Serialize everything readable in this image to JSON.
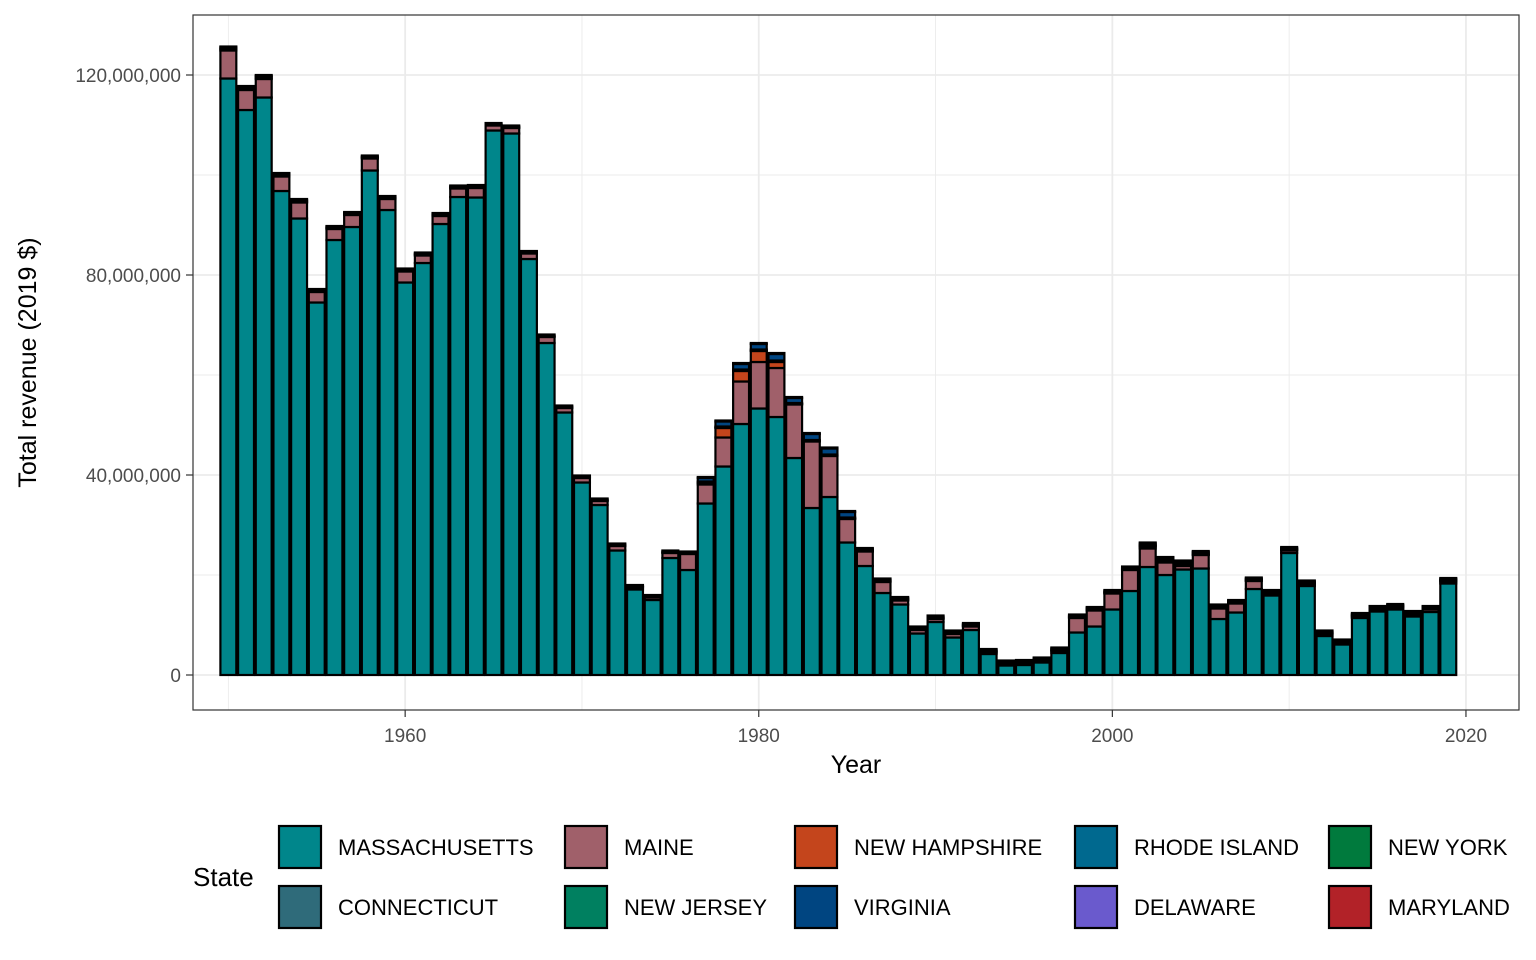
{
  "chart_data": {
    "type": "bar",
    "stacked": true,
    "xlabel": "Year",
    "ylabel": "Total revenue (2019 $)",
    "xlim": [
      1948,
      2023
    ],
    "ylim": [
      -7000000,
      132000000
    ],
    "x_ticks": [
      1960,
      1980,
      2000,
      2020
    ],
    "y_ticks": [
      0,
      40000000,
      80000000,
      120000000
    ],
    "y_tick_labels": [
      "0",
      "40,000,000",
      "80,000,000",
      "120,000,000"
    ],
    "grid": true,
    "legend_position": "bottom",
    "legend_title": "State",
    "bar_outline": "#000000",
    "years": [
      1950,
      1951,
      1952,
      1953,
      1954,
      1955,
      1956,
      1957,
      1958,
      1959,
      1960,
      1961,
      1962,
      1963,
      1964,
      1965,
      1966,
      1967,
      1968,
      1969,
      1970,
      1971,
      1972,
      1973,
      1974,
      1975,
      1976,
      1977,
      1978,
      1979,
      1980,
      1981,
      1982,
      1983,
      1984,
      1985,
      1986,
      1987,
      1988,
      1989,
      1990,
      1991,
      1992,
      1993,
      1994,
      1995,
      1996,
      1997,
      1998,
      1999,
      2000,
      2001,
      2002,
      2003,
      2004,
      2005,
      2006,
      2007,
      2008,
      2009,
      2010,
      2011,
      2012,
      2013,
      2014,
      2015,
      2016,
      2017,
      2018,
      2019
    ],
    "series": [
      {
        "name": "MASSACHUSETTS",
        "color": "#00868B",
        "values": [
          119300000,
          113000000,
          115500000,
          96800000,
          91300000,
          74500000,
          87000000,
          89600000,
          100900000,
          93000000,
          78500000,
          82400000,
          90200000,
          95600000,
          95500000,
          108900000,
          108300000,
          83200000,
          66400000,
          52500000,
          38500000,
          34000000,
          24900000,
          17100000,
          15000000,
          23400000,
          21000000,
          34300000,
          41700000,
          50200000,
          53300000,
          51600000,
          43400000,
          33400000,
          35600000,
          26500000,
          21800000,
          16400000,
          14100000,
          8300000,
          10600000,
          7500000,
          9000000,
          4200000,
          1900000,
          2000000,
          2500000,
          4400000,
          8500000,
          9700000,
          13100000,
          16800000,
          21600000,
          20000000,
          21100000,
          21300000,
          11200000,
          12500000,
          17200000,
          15900000,
          24400000,
          17800000,
          7800000,
          6100000,
          11400000,
          12700000,
          13100000,
          11700000,
          12600000,
          18300000
        ]
      },
      {
        "name": "MAINE",
        "color": "#A0606A",
        "values": [
          5600000,
          4000000,
          3700000,
          2900000,
          3200000,
          2100000,
          2200000,
          2400000,
          2400000,
          2200000,
          2200000,
          1500000,
          1600000,
          1700000,
          1900000,
          1000000,
          1100000,
          1100000,
          1200000,
          900000,
          900000,
          800000,
          900000,
          400000,
          500000,
          1000000,
          3200000,
          3800000,
          5800000,
          8500000,
          9300000,
          9800000,
          10700000,
          13300000,
          8200000,
          4700000,
          2900000,
          2200000,
          800000,
          700000,
          600000,
          700000,
          700000,
          300000,
          300000,
          300000,
          300000,
          400000,
          2900000,
          3200000,
          3200000,
          4200000,
          3700000,
          2500000,
          700000,
          2700000,
          2100000,
          1800000,
          1600000,
          400000,
          500000,
          400000,
          400000,
          300000,
          300000,
          400000,
          400000,
          400000,
          500000,
          400000
        ]
      },
      {
        "name": "NEW HAMPSHIRE",
        "color": "#C4451C",
        "values": [
          0,
          0,
          0,
          0,
          0,
          0,
          0,
          0,
          0,
          0,
          0,
          0,
          0,
          0,
          0,
          0,
          0,
          0,
          0,
          0,
          0,
          0,
          0,
          0,
          0,
          0,
          0,
          300000,
          1900000,
          2100000,
          2200000,
          1200000,
          0,
          0,
          0,
          0,
          0,
          0,
          0,
          0,
          0,
          0,
          0,
          0,
          0,
          0,
          0,
          0,
          0,
          0,
          0,
          0,
          0,
          0,
          0,
          0,
          0,
          0,
          0,
          0,
          0,
          0,
          0,
          0,
          0,
          0,
          0,
          0,
          0,
          0
        ]
      },
      {
        "name": "RHODE ISLAND",
        "color": "#00698F",
        "values": [
          0,
          0,
          0,
          0,
          0,
          0,
          0,
          0,
          0,
          0,
          0,
          0,
          0,
          0,
          0,
          0,
          0,
          0,
          0,
          0,
          0,
          0,
          0,
          0,
          0,
          0,
          0,
          0,
          0,
          0,
          0,
          0,
          0,
          0,
          0,
          0,
          0,
          0,
          0,
          0,
          0,
          0,
          0,
          0,
          0,
          0,
          0,
          0,
          0,
          0,
          0,
          0,
          400000,
          300000,
          300000,
          0,
          0,
          0,
          0,
          0,
          0,
          0,
          0,
          0,
          0,
          0,
          0,
          0,
          0,
          0
        ]
      },
      {
        "name": "NEW YORK",
        "color": "#007A3D",
        "values": [
          0,
          0,
          0,
          0,
          0,
          0,
          0,
          0,
          0,
          0,
          0,
          0,
          0,
          0,
          0,
          0,
          0,
          0,
          0,
          0,
          0,
          0,
          0,
          0,
          0,
          0,
          0,
          0,
          0,
          0,
          0,
          0,
          0,
          0,
          0,
          0,
          0,
          0,
          0,
          0,
          0,
          0,
          0,
          0,
          0,
          0,
          0,
          0,
          0,
          0,
          0,
          0,
          0,
          0,
          0,
          0,
          0,
          0,
          0,
          0,
          0,
          0,
          0,
          0,
          0,
          0,
          0,
          0,
          0,
          0
        ]
      },
      {
        "name": "CONNECTICUT",
        "color": "#2F6B7A",
        "values": [
          300000,
          300000,
          300000,
          200000,
          200000,
          200000,
          200000,
          200000,
          200000,
          200000,
          200000,
          200000,
          200000,
          200000,
          200000,
          100000,
          100000,
          100000,
          100000,
          100000,
          100000,
          100000,
          100000,
          100000,
          100000,
          100000,
          100000,
          100000,
          100000,
          100000,
          100000,
          100000,
          100000,
          100000,
          100000,
          100000,
          100000,
          100000,
          100000,
          100000,
          100000,
          100000,
          100000,
          100000,
          100000,
          100000,
          100000,
          100000,
          100000,
          100000,
          100000,
          100000,
          100000,
          100000,
          100000,
          100000,
          100000,
          100000,
          100000,
          100000,
          100000,
          100000,
          100000,
          100000,
          100000,
          100000,
          100000,
          100000,
          100000,
          100000
        ]
      },
      {
        "name": "NEW JERSEY",
        "color": "#008060",
        "values": [
          300000,
          300000,
          300000,
          300000,
          300000,
          200000,
          200000,
          200000,
          200000,
          200000,
          200000,
          200000,
          200000,
          200000,
          200000,
          200000,
          200000,
          200000,
          200000,
          200000,
          200000,
          200000,
          200000,
          200000,
          200000,
          200000,
          200000,
          200000,
          200000,
          200000,
          200000,
          200000,
          200000,
          200000,
          200000,
          200000,
          200000,
          200000,
          200000,
          200000,
          200000,
          200000,
          200000,
          200000,
          200000,
          200000,
          200000,
          200000,
          200000,
          200000,
          200000,
          200000,
          200000,
          200000,
          200000,
          200000,
          200000,
          200000,
          200000,
          200000,
          200000,
          200000,
          200000,
          200000,
          200000,
          200000,
          200000,
          200000,
          200000,
          200000
        ]
      },
      {
        "name": "VIRGINIA",
        "color": "#004581",
        "values": [
          0,
          0,
          0,
          0,
          0,
          0,
          0,
          0,
          0,
          0,
          0,
          0,
          0,
          0,
          0,
          0,
          0,
          0,
          0,
          0,
          0,
          0,
          0,
          0,
          0,
          0,
          0,
          700000,
          1000000,
          1100000,
          1100000,
          1300000,
          1000000,
          1200000,
          1200000,
          1100000,
          200000,
          200000,
          200000,
          200000,
          200000,
          200000,
          200000,
          200000,
          200000,
          200000,
          200000,
          200000,
          200000,
          200000,
          200000,
          200000,
          300000,
          300000,
          300000,
          300000,
          300000,
          200000,
          200000,
          200000,
          200000,
          200000,
          200000,
          200000,
          200000,
          200000,
          200000,
          200000,
          200000,
          200000
        ]
      },
      {
        "name": "DELAWARE",
        "color": "#6A5ACD",
        "values": [
          0,
          0,
          0,
          0,
          0,
          0,
          0,
          0,
          0,
          0,
          0,
          0,
          0,
          0,
          0,
          0,
          0,
          0,
          0,
          0,
          0,
          0,
          0,
          0,
          0,
          0,
          0,
          0,
          0,
          0,
          0,
          0,
          0,
          0,
          0,
          0,
          0,
          0,
          0,
          0,
          0,
          0,
          0,
          0,
          0,
          0,
          0,
          0,
          0,
          0,
          0,
          0,
          0,
          0,
          0,
          0,
          0,
          0,
          0,
          0,
          0,
          0,
          0,
          0,
          0,
          0,
          0,
          0,
          0,
          0
        ]
      },
      {
        "name": "MARYLAND",
        "color": "#B22228",
        "values": [
          200000,
          200000,
          200000,
          200000,
          200000,
          200000,
          200000,
          200000,
          200000,
          200000,
          200000,
          200000,
          200000,
          200000,
          200000,
          200000,
          200000,
          200000,
          200000,
          200000,
          200000,
          200000,
          200000,
          200000,
          200000,
          200000,
          200000,
          200000,
          200000,
          200000,
          200000,
          200000,
          200000,
          200000,
          200000,
          200000,
          200000,
          200000,
          200000,
          200000,
          200000,
          200000,
          200000,
          200000,
          200000,
          200000,
          200000,
          200000,
          200000,
          200000,
          200000,
          200000,
          200000,
          200000,
          200000,
          200000,
          200000,
          200000,
          200000,
          200000,
          200000,
          200000,
          200000,
          200000,
          200000,
          200000,
          200000,
          200000,
          200000,
          200000
        ]
      }
    ],
    "legend_order": [
      [
        "MASSACHUSETTS",
        "MAINE",
        "NEW HAMPSHIRE",
        "RHODE ISLAND",
        "NEW YORK"
      ],
      [
        "CONNECTICUT",
        "NEW JERSEY",
        "VIRGINIA",
        "DELAWARE",
        "MARYLAND"
      ]
    ]
  }
}
